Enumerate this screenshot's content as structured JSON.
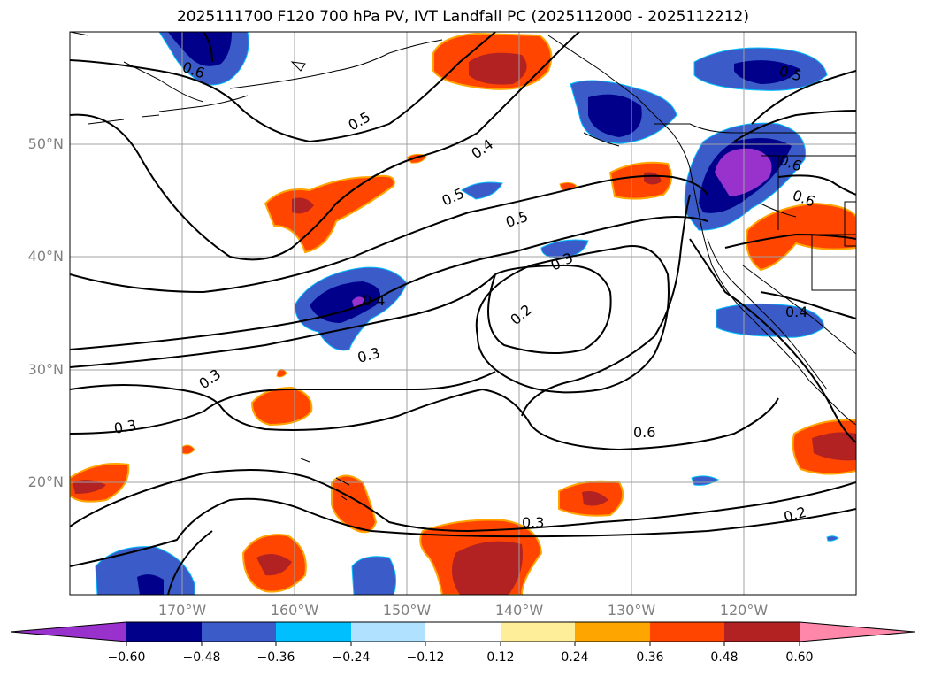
{
  "title": "2025111700 F120 700 hPa PV, IVT Landfall PC (2025112000 - 2025112212)",
  "map": {
    "region": "North-East Pacific",
    "lon_range": [
      -180,
      -110
    ],
    "lat_range": [
      10,
      60
    ],
    "lat_ticks": [
      "50°N",
      "40°N",
      "30°N",
      "20°N"
    ],
    "lon_ticks": [
      "170°W",
      "160°W",
      "150°W",
      "140°W",
      "130°W",
      "120°W"
    ],
    "contour_labels": [
      "0.6",
      "0.5",
      "0.4",
      "0.5",
      "0.5",
      "0.3",
      "0.2",
      "0.3",
      "0.3",
      "0.3",
      "0.6",
      "0.3",
      "0.2",
      "0.5",
      "0.6",
      "0.6",
      "0.4",
      "0.4"
    ],
    "gridlines": true
  },
  "colorbar": {
    "orientation": "horizontal",
    "extend": "both",
    "colors": [
      "#9932cc",
      "#00008b",
      "#3a5bc8",
      "#00bfff",
      "#b0e2ff",
      "#ffffff",
      "#ffee99",
      "#ffa500",
      "#ff4500",
      "#b22222",
      "#ff88aa"
    ],
    "tick_labels": [
      "−0.60",
      "−0.48",
      "−0.36",
      "−0.24",
      "−0.12",
      "0.12",
      "0.24",
      "0.36",
      "0.48",
      "0.60"
    ]
  }
}
